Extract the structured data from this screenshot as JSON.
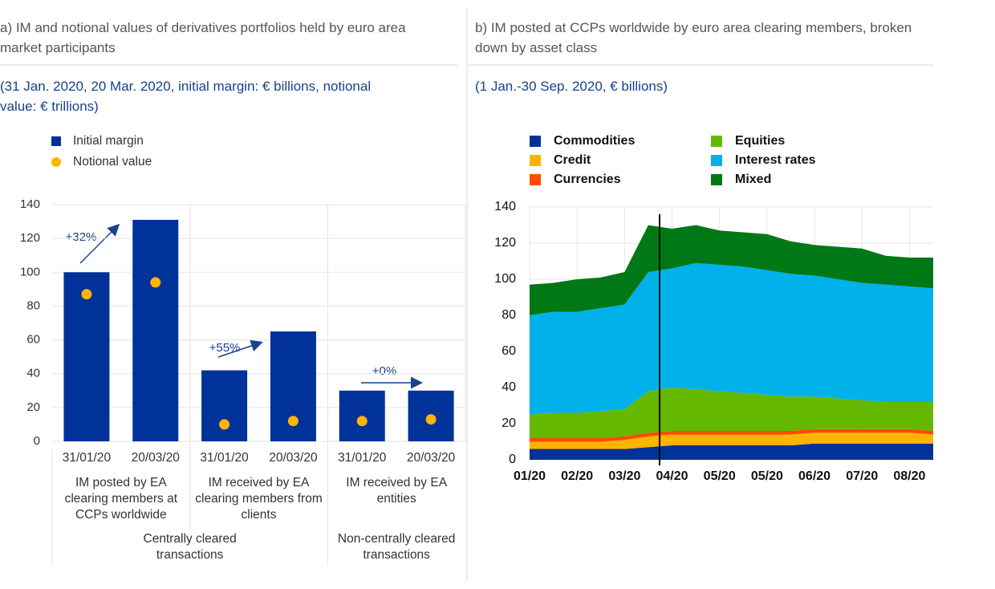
{
  "chart_data": [
    {
      "type": "bar",
      "title": "a) IM and notional values of derivatives portfolios held by euro area market participants",
      "subtitle": "(31 Jan. 2020, 20 Mar. 2020, initial margin: € billions, notional value: € trillions)",
      "categories": [
        "31/01/20",
        "20/03/20",
        "31/01/20",
        "20/03/20",
        "31/01/20",
        "20/03/20"
      ],
      "groups": [
        "IM posted by EA clearing members at CCPs worldwide",
        "IM received by EA clearing members from clients",
        "IM received by EA entities"
      ],
      "supergroups": [
        "Centrally cleared transactions",
        "Non-centrally cleared transactions"
      ],
      "annotations": [
        "+32%",
        "+55%",
        "+0%"
      ],
      "series": [
        {
          "name": "Initial margin",
          "type": "bar",
          "color": "#003299",
          "values": [
            100,
            131,
            42,
            65,
            30,
            30
          ]
        },
        {
          "name": "Notional value",
          "type": "scatter",
          "color": "#ffb400",
          "values": [
            87,
            94,
            10,
            12,
            12,
            13
          ]
        }
      ],
      "ylim": [
        0,
        140
      ],
      "yticks": [
        0,
        20,
        40,
        60,
        80,
        100,
        120,
        140
      ],
      "grid": true
    },
    {
      "type": "area",
      "title": "b) IM posted at CCPs worldwide by euro area clearing members, broken down by asset class",
      "subtitle": "(1 Jan.-30 Sep. 2020, € billions)",
      "categories": [
        "01/20",
        null,
        "02/20",
        null,
        "03/20",
        null,
        "04/20",
        null,
        "05/20",
        null,
        "05/20",
        null,
        "06/20",
        null,
        "07/20",
        null,
        "08/20",
        null
      ],
      "stacked": true,
      "series": [
        {
          "name": "Commodities",
          "color": "#003299",
          "values": [
            6,
            6,
            6,
            6,
            6,
            7,
            8,
            8,
            8,
            8,
            8,
            8,
            9,
            9,
            9,
            9,
            9,
            9
          ]
        },
        {
          "name": "Credit",
          "color": "#ffb400",
          "values": [
            4,
            4,
            4,
            4,
            5,
            6,
            6,
            6,
            6,
            6,
            6,
            6,
            6,
            6,
            6,
            6,
            6,
            5
          ]
        },
        {
          "name": "Currencies",
          "color": "#ff4b00",
          "values": [
            2,
            2,
            2,
            2,
            2,
            2,
            2,
            2,
            2,
            2,
            2,
            2,
            2,
            2,
            2,
            2,
            2,
            2
          ]
        },
        {
          "name": "Equities",
          "color": "#65b800",
          "values": [
            13,
            14,
            14,
            15,
            15,
            23,
            24,
            23,
            22,
            21,
            20,
            19,
            18,
            17,
            16,
            15,
            15,
            16
          ]
        },
        {
          "name": "Interest rates",
          "color": "#00b1ea",
          "values": [
            55,
            56,
            56,
            57,
            58,
            66,
            66,
            70,
            70,
            70,
            69,
            68,
            67,
            66,
            65,
            65,
            64,
            63
          ]
        },
        {
          "name": "Mixed",
          "color": "#007816",
          "values": [
            17,
            16,
            18,
            17,
            18,
            26,
            22,
            21,
            19,
            19,
            20,
            18,
            17,
            18,
            19,
            16,
            16,
            17
          ]
        }
      ],
      "ylim": [
        0,
        140
      ],
      "yticks": [
        0,
        20,
        40,
        60,
        80,
        100,
        120,
        140
      ],
      "grid": true
    }
  ]
}
